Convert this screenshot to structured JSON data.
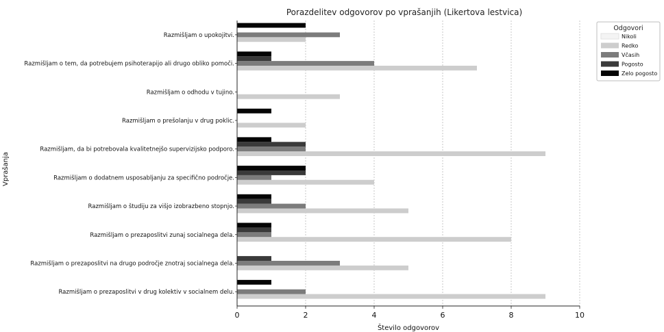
{
  "chart_data": {
    "type": "bar",
    "orientation": "horizontal",
    "title": "Porazdelitev odgovorov po vprašanjih (Likertova lestvica)",
    "xlabel": "Število odgovorov",
    "ylabel": "Vprašanja",
    "xlim": [
      0,
      10
    ],
    "xticks": [
      0,
      2,
      4,
      6,
      8,
      10
    ],
    "grid": "x, dotted",
    "legend": {
      "title": "Odgovori",
      "placement": "top-right, outside plot"
    },
    "categories": [
      "Razmišljam o upokojitvi.",
      "Razmišljam o tem, da potrebujem psihoterapijo ali drugo obliko pomoči.",
      "Razmišljam o odhodu v tujino.",
      "Razmišljam o prešolanju v drug poklic.",
      "Razmišljam, da bi potrebovala kvalitetnejšo supervizijsko podporo.",
      "Razmišljam o dodatnem usposabljanju za specifično področje.",
      "Razmišljam o študiju za višjo izobrazbeno stopnjo.",
      "Razmišljam o prezaposlitvi zunaj socialnega dela.",
      "Razmišljam o prezaposlitvi na drugo področje znotraj socialnega dela.",
      "Razmišljam o prezaposlitvi v drug kolektiv v socialnem delu."
    ],
    "series": [
      {
        "name": "Nikoli",
        "color": "#f4f4f4",
        "values": [
          0,
          0,
          0,
          0,
          0,
          0,
          0,
          0,
          0,
          0
        ]
      },
      {
        "name": "Redko",
        "color": "#cdcdcd",
        "values": [
          2,
          7,
          3,
          2,
          9,
          4,
          5,
          8,
          5,
          9
        ]
      },
      {
        "name": "Včasih",
        "color": "#7c7c7c",
        "values": [
          3,
          4,
          0,
          0,
          2,
          1,
          2,
          1,
          3,
          2
        ]
      },
      {
        "name": "Pogosto",
        "color": "#3a3a3a",
        "values": [
          0,
          1,
          0,
          0,
          2,
          2,
          1,
          1,
          1,
          0
        ]
      },
      {
        "name": "Zelo pogosto",
        "color": "#050505",
        "values": [
          2,
          1,
          0,
          1,
          1,
          2,
          1,
          1,
          0,
          1
        ]
      }
    ]
  }
}
